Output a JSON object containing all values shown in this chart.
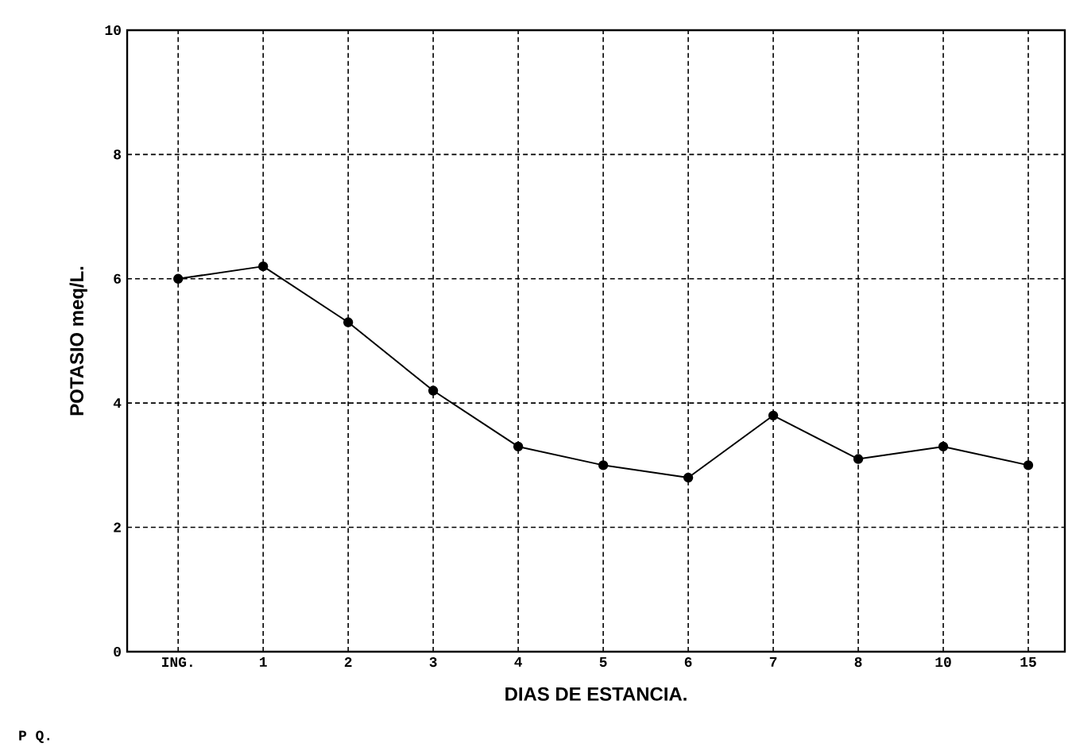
{
  "chart_data": {
    "type": "line",
    "xlabel": "DIAS DE ESTANCIA.",
    "ylabel": "POTASIO meq/L.",
    "categories": [
      "ING.",
      "1",
      "2",
      "3",
      "4",
      "5",
      "6",
      "7",
      "8",
      "10",
      "15"
    ],
    "values": [
      6.0,
      6.2,
      5.3,
      4.2,
      3.3,
      3.0,
      2.8,
      3.8,
      3.1,
      3.3,
      3.0
    ],
    "color": "#000000",
    "marker": "circle",
    "line_style": "solid",
    "grid": true,
    "ylim": [
      0,
      10
    ],
    "yticks": [
      0,
      2,
      4,
      6,
      8,
      10
    ],
    "annotations": [
      "P Q."
    ]
  }
}
